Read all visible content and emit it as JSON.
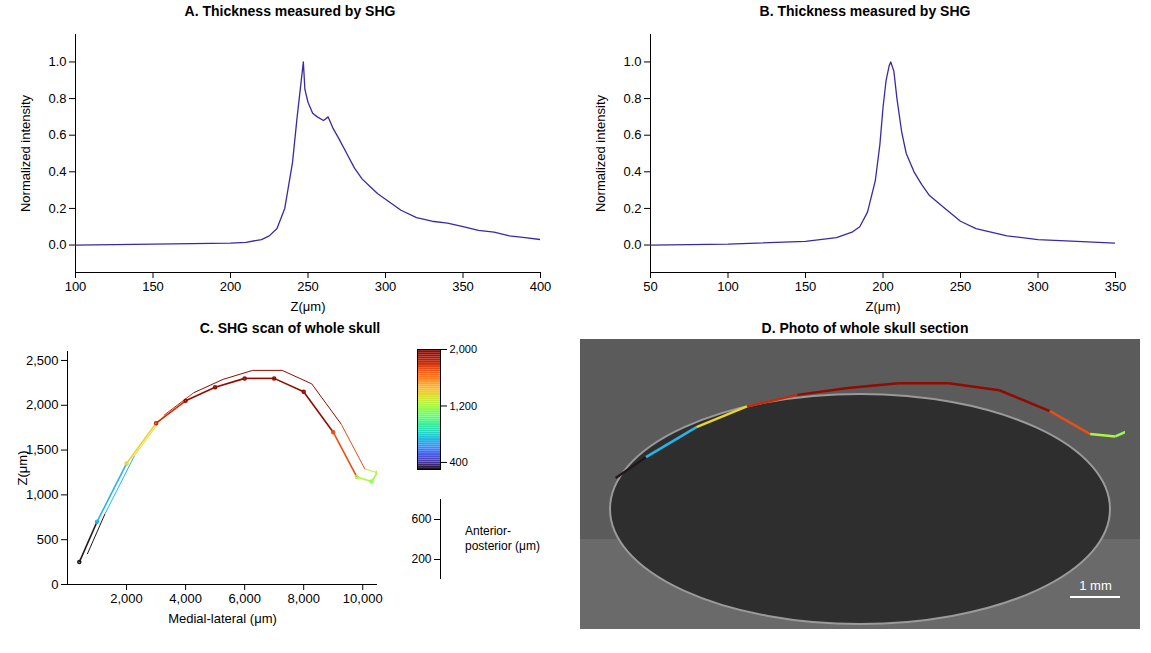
{
  "chart_data": [
    {
      "type": "line",
      "title": "A. Thickness measured by SHG",
      "x_label": "Z(μm)",
      "y_label": "Normalized intensity",
      "x": [
        100,
        150,
        200,
        210,
        220,
        225,
        230,
        235,
        240,
        243,
        245,
        247,
        248,
        250,
        253,
        256,
        260,
        263,
        266,
        270,
        275,
        280,
        285,
        290,
        295,
        300,
        310,
        320,
        330,
        340,
        350,
        360,
        370,
        380,
        390,
        400
      ],
      "values": [
        0,
        0.005,
        0.01,
        0.015,
        0.03,
        0.05,
        0.09,
        0.2,
        0.45,
        0.7,
        0.85,
        1.0,
        0.85,
        0.78,
        0.72,
        0.7,
        0.68,
        0.7,
        0.64,
        0.58,
        0.5,
        0.42,
        0.36,
        0.32,
        0.28,
        0.25,
        0.19,
        0.15,
        0.13,
        0.12,
        0.1,
        0.08,
        0.07,
        0.05,
        0.04,
        0.03
      ],
      "color": "#3a2aa0",
      "xlim": [
        100,
        400
      ],
      "xticks": [
        100,
        150,
        200,
        250,
        300,
        350,
        400
      ],
      "ylim": [
        -0.15,
        1.15
      ],
      "yticks": [
        0,
        0.2,
        0.4,
        0.6,
        0.8,
        1
      ]
    },
    {
      "type": "line",
      "title": "B. Thickness measured by SHG",
      "x_label": "Z(μm)",
      "y_label": "Normalized intensity",
      "x": [
        50,
        100,
        150,
        170,
        180,
        185,
        190,
        195,
        198,
        200,
        202,
        204,
        205,
        207,
        209,
        212,
        215,
        220,
        225,
        230,
        240,
        250,
        260,
        280,
        300,
        325,
        350
      ],
      "values": [
        0,
        0.005,
        0.02,
        0.04,
        0.07,
        0.1,
        0.18,
        0.35,
        0.55,
        0.75,
        0.9,
        0.98,
        1.0,
        0.95,
        0.8,
        0.62,
        0.5,
        0.4,
        0.33,
        0.27,
        0.2,
        0.13,
        0.09,
        0.05,
        0.03,
        0.02,
        0.01
      ],
      "color": "#3a2aa0",
      "xlim": [
        50,
        350
      ],
      "xticks": [
        50,
        100,
        150,
        200,
        250,
        300,
        350
      ],
      "ylim": [
        -0.15,
        1.15
      ],
      "yticks": [
        0,
        0.2,
        0.4,
        0.6,
        0.8,
        1
      ]
    },
    {
      "type": "surface",
      "title": "C. SHG scan of whole skull",
      "x_label": "Medial-lateral (μm)",
      "y_label": "Z(μm)",
      "x": [
        400,
        1000,
        2000,
        3000,
        4000,
        5000,
        6000,
        7000,
        8000,
        9000,
        9800,
        10300,
        10500
      ],
      "values": [
        250,
        700,
        1350,
        1800,
        2050,
        2200,
        2300,
        2300,
        2150,
        1700,
        1200,
        1150,
        1250
      ],
      "xlim": [
        0,
        10500
      ],
      "xticks": [
        2000,
        4000,
        6000,
        8000,
        10000
      ],
      "ylim": [
        0,
        2600
      ],
      "yticks": [
        0,
        500,
        1000,
        1500,
        2000,
        2500
      ],
      "ap_label": "Anterior-posterior (μm)",
      "aplim": [
        0,
        800
      ],
      "apticks": [
        200,
        600
      ],
      "colorbar": {
        "range": [
          300,
          2000
        ],
        "ticks": [
          400,
          1200,
          2000
        ]
      }
    }
  ],
  "photo": {
    "title": "D. Photo of whole skull section",
    "scale_bar": "1 mm"
  }
}
